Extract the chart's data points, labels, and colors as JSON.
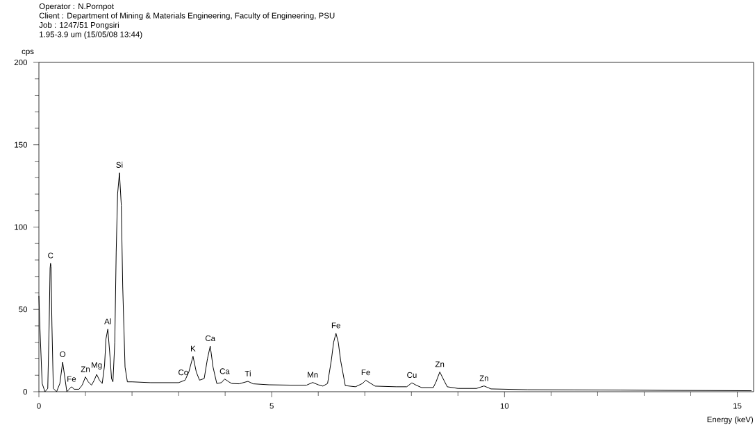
{
  "chart_data": {
    "type": "line",
    "xlabel": "Energy (keV)",
    "ylabel": "cps",
    "annotations": [
      "Operator : N.Pornpot",
      "Client : Department of Mining & Materials Engineering, Faculty of Engineering, PSU",
      "Job : 1247/51 Pongsiri",
      "1.95-3.9 um (15/05/08 13:44)",
      {
        "text": "C",
        "x": 0.25,
        "y": 78
      },
      {
        "text": "O",
        "x": 0.51,
        "y": 18
      },
      {
        "text": "Fe",
        "x": 0.7,
        "y": 3
      },
      {
        "text": "Zn",
        "x": 1.0,
        "y": 9
      },
      {
        "text": "Mg",
        "x": 1.24,
        "y": 10.5
      },
      {
        "text": "Al",
        "x": 1.48,
        "y": 38
      },
      {
        "text": "Si",
        "x": 1.73,
        "y": 133
      },
      {
        "text": "Co",
        "x": 3.1,
        "y": 7
      },
      {
        "text": "K",
        "x": 3.31,
        "y": 21.5
      },
      {
        "text": "Ca",
        "x": 3.68,
        "y": 27.7
      },
      {
        "text": "Ca",
        "x": 3.99,
        "y": 7.7
      },
      {
        "text": "Ti",
        "x": 4.49,
        "y": 6.3
      },
      {
        "text": "Mn",
        "x": 5.88,
        "y": 5.6
      },
      {
        "text": "Fe",
        "x": 6.38,
        "y": 35.5
      },
      {
        "text": "Fe",
        "x": 7.02,
        "y": 7
      },
      {
        "text": "Cu",
        "x": 8.01,
        "y": 5.4
      },
      {
        "text": "Zn",
        "x": 8.61,
        "y": 12
      },
      {
        "text": "Zn",
        "x": 9.56,
        "y": 3.5
      }
    ],
    "series": [
      {
        "color": "#000000",
        "x": [
          0.0,
          0.02,
          0.07,
          0.13,
          0.19,
          0.22,
          0.24,
          0.25,
          0.26,
          0.28,
          0.31,
          0.38,
          0.45,
          0.51,
          0.56,
          0.6,
          0.65,
          0.7,
          0.76,
          0.86,
          0.93,
          1.0,
          1.06,
          1.13,
          1.19,
          1.24,
          1.3,
          1.36,
          1.41,
          1.44,
          1.48,
          1.52,
          1.56,
          1.59,
          1.63,
          1.66,
          1.69,
          1.73,
          1.77,
          1.8,
          1.85,
          1.9,
          2.0,
          2.4,
          2.8,
          3.0,
          3.14,
          3.22,
          3.31,
          3.38,
          3.45,
          3.55,
          3.62,
          3.68,
          3.74,
          3.82,
          3.92,
          3.99,
          4.08,
          4.14,
          4.3,
          4.49,
          4.6,
          4.94,
          5.4,
          5.75,
          5.88,
          6.0,
          6.1,
          6.2,
          6.28,
          6.33,
          6.38,
          6.43,
          6.48,
          6.58,
          6.8,
          6.95,
          7.02,
          7.1,
          7.22,
          7.67,
          7.9,
          8.01,
          8.1,
          8.22,
          8.47,
          8.53,
          8.61,
          8.68,
          8.77,
          9.0,
          9.4,
          9.56,
          9.71,
          10.5,
          11.5,
          12.5,
          13.5,
          14.5,
          15.3
        ],
        "values": [
          58,
          40,
          5,
          0,
          2,
          40,
          75,
          78,
          76,
          40,
          2,
          0,
          5,
          18,
          8,
          0,
          1.5,
          3,
          1.5,
          1.5,
          4,
          9,
          6,
          4,
          7,
          10.5,
          7,
          5,
          16,
          32,
          38,
          24,
          8,
          6,
          30,
          85,
          120,
          133,
          113,
          64,
          15,
          6,
          6,
          5.5,
          5.5,
          5.5,
          7,
          12,
          21.5,
          12,
          7,
          8,
          20,
          27.7,
          15,
          5,
          5.5,
          7.7,
          6,
          5,
          4.8,
          6.3,
          4.8,
          4.2,
          4,
          4,
          5.6,
          4.2,
          3.4,
          5,
          19,
          30,
          35.5,
          30,
          19,
          3.7,
          3,
          5,
          7,
          5.5,
          3.4,
          3,
          3,
          5.4,
          4,
          2.5,
          2.5,
          6,
          12,
          8,
          3,
          2,
          2,
          3.5,
          1.7,
          1.2,
          1.1,
          1,
          0.8,
          0.7,
          0.6
        ]
      }
    ],
    "xlim": [
      0,
      15.35
    ],
    "ylim": [
      0,
      200
    ],
    "xticks": [
      0,
      {
        "value": 1,
        "label": null
      },
      {
        "value": 2,
        "label": null
      },
      {
        "value": 3,
        "label": null
      },
      {
        "value": 4,
        "label": null
      },
      5,
      {
        "value": 6,
        "label": null
      },
      {
        "value": 7,
        "label": null
      },
      {
        "value": 8,
        "label": null
      },
      {
        "value": 9,
        "label": null
      },
      10,
      {
        "value": 11,
        "label": null
      },
      {
        "value": 12,
        "label": null
      },
      {
        "value": 13,
        "label": null
      },
      {
        "value": 14,
        "label": null
      },
      15
    ],
    "yticks": [
      0,
      {
        "value": 10,
        "label": null
      },
      {
        "value": 20,
        "label": null
      },
      {
        "value": 30,
        "label": null
      },
      {
        "value": 40,
        "label": null
      },
      50,
      {
        "value": 60,
        "label": null
      },
      {
        "value": 70,
        "label": null
      },
      {
        "value": 80,
        "label": null
      },
      {
        "value": 90,
        "label": null
      },
      100,
      {
        "value": 110,
        "label": null
      },
      {
        "value": 120,
        "label": null
      },
      {
        "value": 130,
        "label": null
      },
      {
        "value": 140,
        "label": null
      },
      150,
      {
        "value": 160,
        "label": null
      },
      {
        "value": 170,
        "label": null
      },
      {
        "value": 180,
        "label": null
      },
      {
        "value": 190,
        "label": null
      },
      200
    ],
    "grid": false,
    "marker": "none",
    "line_style": "solid"
  }
}
